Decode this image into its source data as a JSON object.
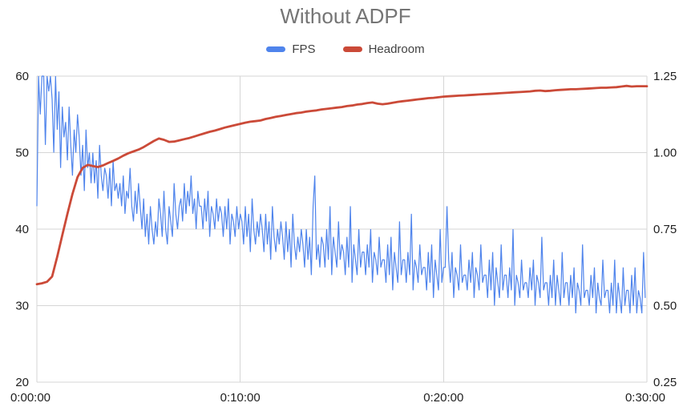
{
  "chart_data": {
    "type": "line",
    "title": "Without ADPF",
    "xlabel": "",
    "ylabel": "",
    "grid": true,
    "legend": {
      "position": "top",
      "items": [
        {
          "label": "FPS",
          "color": "#4f84ec",
          "axis": "left"
        },
        {
          "label": "Headroom",
          "color": "#cb4a38",
          "axis": "right"
        }
      ]
    },
    "x_axis": {
      "domain_seconds": [
        0,
        1800
      ],
      "tick_seconds": [
        0,
        600,
        1200,
        1800
      ],
      "tick_labels": [
        "0:00:00",
        "0:10:00",
        "0:20:00",
        "0:30:00"
      ]
    },
    "left_axis": {
      "range": [
        20,
        60
      ],
      "tick_labels": [
        "60",
        "50",
        "40",
        "30",
        "20"
      ]
    },
    "right_axis": {
      "range": [
        0.25,
        1.25
      ],
      "tick_labels": [
        "1.25",
        "1.00",
        "0.75",
        "0.50",
        "0.25"
      ]
    },
    "series": [
      {
        "name": "FPS",
        "axis": "left",
        "sample_interval_seconds": 5,
        "values": [
          43,
          60,
          55,
          60,
          60,
          51,
          60,
          58,
          60,
          57,
          50,
          60,
          53,
          58,
          48,
          56,
          52,
          54,
          49,
          56,
          51,
          47,
          53,
          50,
          55,
          52,
          47,
          51,
          45,
          53,
          48,
          50,
          46,
          50,
          46,
          49,
          44,
          51,
          47,
          45,
          48,
          47,
          44,
          48,
          43,
          49,
          45,
          46,
          44,
          46,
          43,
          47,
          42,
          45,
          44,
          48,
          43,
          41,
          45,
          42,
          46,
          43,
          40,
          44,
          39,
          42,
          38,
          43,
          40,
          38,
          41,
          39,
          44,
          42,
          39,
          45,
          40,
          38,
          43,
          41,
          39,
          46,
          42,
          40,
          43,
          44,
          41,
          46,
          42,
          45,
          43,
          47,
          42,
          44,
          40,
          45,
          43,
          43,
          40,
          44,
          41,
          45,
          39,
          43,
          42,
          40,
          44,
          41,
          43,
          42,
          39,
          43,
          40,
          44,
          38,
          42,
          41,
          39,
          43,
          40,
          42,
          41,
          38,
          43,
          39,
          42,
          37,
          44,
          40,
          38,
          41,
          39,
          42,
          40,
          37,
          42,
          38,
          41,
          36,
          43,
          39,
          37,
          40,
          38,
          41,
          39,
          36,
          41,
          37,
          40,
          35,
          42,
          38,
          36,
          39,
          37,
          40,
          38,
          35,
          40,
          36,
          39,
          34,
          43,
          47,
          36,
          38,
          35,
          39,
          38,
          35,
          40,
          36,
          43,
          34,
          39,
          37,
          35,
          41,
          36,
          38,
          37,
          34,
          39,
          35,
          43,
          33,
          38,
          36,
          34,
          40,
          35,
          37,
          37,
          34,
          38,
          35,
          40,
          33,
          37,
          36,
          34,
          39,
          35,
          36,
          36,
          33,
          38,
          34,
          39,
          32,
          37,
          35,
          33,
          41,
          34,
          36,
          36,
          33,
          37,
          34,
          42,
          32,
          36,
          35,
          33,
          38,
          34,
          35,
          35,
          32,
          37,
          33,
          38,
          31,
          36,
          34,
          32,
          40,
          33,
          35,
          35,
          43,
          36,
          33,
          37,
          31,
          35,
          34,
          32,
          38,
          33,
          34,
          34,
          32,
          36,
          33,
          37,
          31,
          35,
          34,
          32,
          38,
          33,
          34,
          34,
          31,
          36,
          32,
          37,
          30,
          35,
          33,
          31,
          38,
          32,
          34,
          34,
          31,
          35,
          32,
          40,
          30,
          34,
          33,
          31,
          36,
          32,
          33,
          33,
          31,
          35,
          32,
          36,
          30,
          34,
          33,
          31,
          39,
          32,
          33,
          33,
          30,
          34,
          31,
          36,
          30,
          34,
          32,
          30,
          37,
          31,
          33,
          33,
          30,
          34,
          31,
          35,
          29,
          33,
          32,
          30,
          38,
          31,
          32,
          32,
          30,
          34,
          31,
          35,
          29,
          33,
          31,
          30,
          36,
          31,
          32,
          32,
          29,
          33,
          30,
          36,
          29,
          33,
          31,
          29,
          35,
          30,
          32,
          32,
          29,
          34,
          30,
          35,
          29,
          32,
          31,
          29,
          37,
          31
        ]
      },
      {
        "name": "Headroom",
        "axis": "right",
        "sample_interval_seconds": 15,
        "values": [
          0.57,
          0.573,
          0.578,
          0.595,
          0.66,
          0.73,
          0.8,
          0.865,
          0.92,
          0.95,
          0.96,
          0.956,
          0.953,
          0.958,
          0.966,
          0.973,
          0.981,
          0.99,
          0.998,
          1.004,
          1.01,
          1.018,
          1.028,
          1.038,
          1.046,
          1.042,
          1.035,
          1.036,
          1.04,
          1.044,
          1.048,
          1.053,
          1.058,
          1.063,
          1.068,
          1.072,
          1.077,
          1.082,
          1.086,
          1.09,
          1.094,
          1.098,
          1.101,
          1.103,
          1.105,
          1.11,
          1.113,
          1.117,
          1.12,
          1.123,
          1.126,
          1.129,
          1.131,
          1.134,
          1.136,
          1.138,
          1.141,
          1.143,
          1.145,
          1.147,
          1.149,
          1.152,
          1.154,
          1.157,
          1.159,
          1.162,
          1.164,
          1.16,
          1.158,
          1.16,
          1.163,
          1.166,
          1.168,
          1.17,
          1.172,
          1.174,
          1.176,
          1.178,
          1.179,
          1.181,
          1.183,
          1.184,
          1.185,
          1.186,
          1.187,
          1.188,
          1.189,
          1.19,
          1.191,
          1.192,
          1.193,
          1.194,
          1.195,
          1.196,
          1.197,
          1.198,
          1.199,
          1.2,
          1.202,
          1.203,
          1.201,
          1.202,
          1.204,
          1.205,
          1.206,
          1.207,
          1.207,
          1.208,
          1.209,
          1.21,
          1.211,
          1.212,
          1.212,
          1.213,
          1.214,
          1.216,
          1.218,
          1.216,
          1.217,
          1.217,
          1.217
        ]
      }
    ]
  },
  "colors": {
    "title": "#757575",
    "axis_label": "#1f1f1f",
    "gridline": "#d6d6d6",
    "background": "#ffffff"
  }
}
